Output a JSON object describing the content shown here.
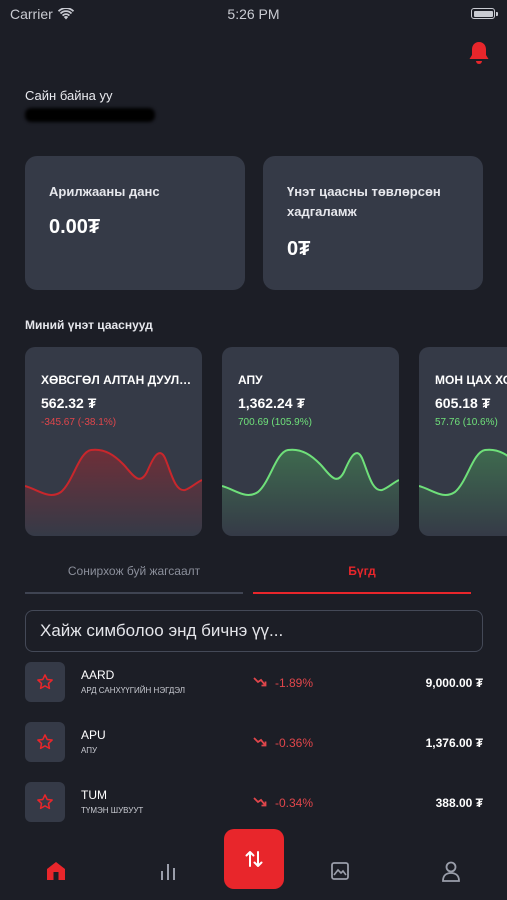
{
  "status_bar": {
    "carrier": "Carrier",
    "time": "5:26 PM"
  },
  "header": {
    "greeting": "Сайн байна уу"
  },
  "accounts": [
    {
      "label": "Арилжааны данс",
      "value": "0.00₮"
    },
    {
      "label": "Үнэт цаасны төвлөрсөн хадгаламж",
      "value": "0₮"
    }
  ],
  "portfolio": {
    "title": "Миний үнэт цааснууд",
    "cards": [
      {
        "name": "ХӨВСГӨЛ АЛТАН ДУУЛГА",
        "price": "562.32 ₮",
        "change": "-345.67 (-38.1%)",
        "trend": "negative",
        "color": "#c8272c"
      },
      {
        "name": "АПУ",
        "price": "1,362.24 ₮",
        "change": "700.69 (105.9%)",
        "trend": "positive",
        "color": "#6fe07a"
      },
      {
        "name": "МОН ЦАХ ХОЛБОО",
        "price": "605.18 ₮",
        "change": "57.76 (10.6%)",
        "trend": "positive",
        "color": "#6fe07a"
      }
    ]
  },
  "tabs": [
    {
      "label": "Сонирхож буй жагсаалт",
      "active": false
    },
    {
      "label": "Бүгд",
      "active": true
    }
  ],
  "search": {
    "placeholder": "Хайж симболоо энд бичнэ үү..."
  },
  "stocks": [
    {
      "symbol": "AARD",
      "company": "АРД САНХҮҮГИЙН НЭГДЭЛ",
      "change": "-1.89%",
      "price": "9,000.00 ₮"
    },
    {
      "symbol": "APU",
      "company": "АПУ",
      "change": "-0.36%",
      "price": "1,376.00 ₮"
    },
    {
      "symbol": "TUM",
      "company": "ТҮМЭН ШУВУУТ",
      "change": "-0.34%",
      "price": "388.00 ₮"
    }
  ],
  "colors": {
    "accent": "#e8262b",
    "background": "#1c1e26",
    "card": "#353a47",
    "negative": "#e0464b",
    "positive": "#6fe07a"
  },
  "bottom_nav": [
    {
      "name": "home-icon",
      "active": true
    },
    {
      "name": "chart-bars-icon",
      "active": false
    },
    {
      "name": "transfer-icon",
      "active": false
    },
    {
      "name": "image-icon",
      "active": false
    },
    {
      "name": "profile-icon",
      "active": false
    }
  ]
}
